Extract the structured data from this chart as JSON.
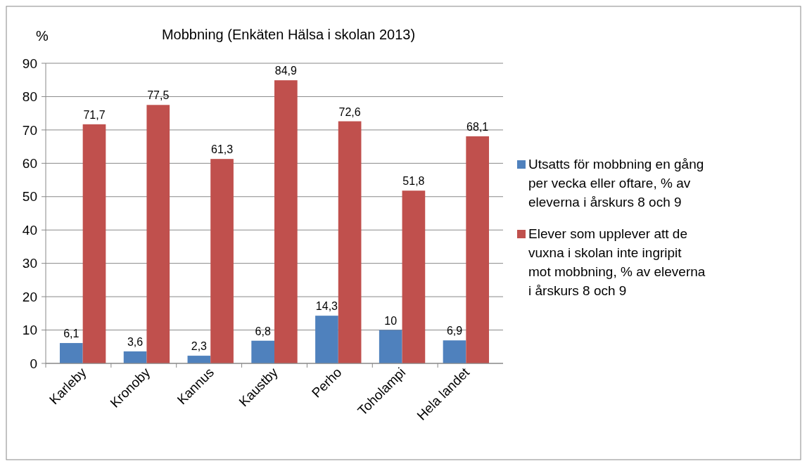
{
  "chart_data": {
    "type": "bar",
    "title": "Mobbning (Enkäten Hälsa i skolan 2013)",
    "ylabel": "%",
    "categories": [
      "Karleby",
      "Kronoby",
      "Kannus",
      "Kaustby",
      "Perho",
      "Toholampi",
      "Hela landet"
    ],
    "series": [
      {
        "name": "Utsatts för mobbning en gång per vecka eller oftare, % av eleverna i årskurs 8 och 9",
        "color": "#4f81bd",
        "values": [
          6.1,
          3.6,
          2.3,
          6.8,
          14.3,
          10,
          6.9
        ],
        "value_labels": [
          "6,1",
          "3,6",
          "2,3",
          "6,8",
          "14,3",
          "10",
          "6,9"
        ]
      },
      {
        "name": "Elever som upplever att de vuxna i skolan inte ingripit mot mobbning, % av eleverna i årskurs 8 och 9",
        "color": "#c0504d",
        "values": [
          71.7,
          77.5,
          61.3,
          84.9,
          72.6,
          51.8,
          68.1
        ],
        "value_labels": [
          "71,7",
          "77,5",
          "61,3",
          "84,9",
          "72,6",
          "51,8",
          "68,1"
        ]
      }
    ],
    "ylim": [
      0,
      90
    ],
    "yticks": [
      0,
      10,
      20,
      30,
      40,
      50,
      60,
      70,
      80,
      90
    ],
    "grid": "y",
    "legend": "right"
  }
}
